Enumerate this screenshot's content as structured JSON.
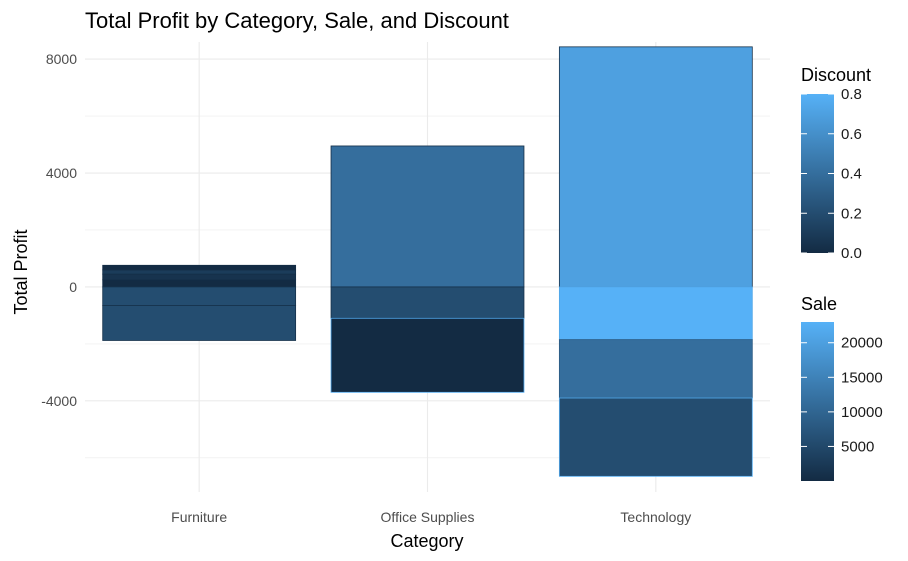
{
  "chart_data": {
    "type": "bar",
    "title": "Total Profit by Category, Sale, and Discount",
    "xlabel": "Category",
    "ylabel": "Total Profit",
    "categories": [
      "Furniture",
      "Office Supplies",
      "Technology"
    ],
    "ylim": [
      -7200,
      8600
    ],
    "yticks": [
      -4000,
      0,
      4000,
      8000
    ],
    "grid": true,
    "fill_aesthetic": "Discount",
    "outline_aesthetic": "Sale",
    "bars": [
      {
        "category": "Furniture",
        "y0": 0,
        "y1": 250,
        "discount": 0.0,
        "sale": 300
      },
      {
        "category": "Furniture",
        "y0": 250,
        "y1": 450,
        "discount": 0.05,
        "sale": 500
      },
      {
        "category": "Furniture",
        "y0": 450,
        "y1": 600,
        "discount": 0.1,
        "sale": 700
      },
      {
        "category": "Furniture",
        "y0": 600,
        "y1": 760,
        "discount": 0.0,
        "sale": 400
      },
      {
        "category": "Furniture",
        "y0": 0,
        "y1": -650,
        "discount": 0.2,
        "sale": 1200
      },
      {
        "category": "Furniture",
        "y0": -650,
        "y1": -1880,
        "discount": 0.2,
        "sale": 1000
      },
      {
        "category": "Office Supplies",
        "y0": 0,
        "y1": 4950,
        "discount": 0.4,
        "sale": 500
      },
      {
        "category": "Office Supplies",
        "y0": 0,
        "y1": -1100,
        "discount": 0.2,
        "sale": 800
      },
      {
        "category": "Office Supplies",
        "y0": -1100,
        "y1": -3700,
        "discount": 0.0,
        "sale": 22000
      },
      {
        "category": "Technology",
        "y0": 0,
        "y1": 8430,
        "discount": 0.7,
        "sale": 1000
      },
      {
        "category": "Technology",
        "y0": 0,
        "y1": -1850,
        "discount": 0.8,
        "sale": 21000
      },
      {
        "category": "Technology",
        "y0": -1850,
        "y1": -3900,
        "discount": 0.4,
        "sale": 8000
      },
      {
        "category": "Technology",
        "y0": -3900,
        "y1": -6650,
        "discount": 0.2,
        "sale": 22000
      }
    ],
    "legends": [
      {
        "title": "Discount",
        "ticks": [
          "0.8",
          "0.6",
          "0.4",
          "0.2",
          "0.0"
        ],
        "range": [
          0,
          0.8
        ]
      },
      {
        "title": "Sale",
        "ticks": [
          "20000",
          "15000",
          "10000",
          "5000"
        ],
        "range": [
          0,
          23000
        ]
      }
    ],
    "legend_placement": "right",
    "colors": {
      "low": "#132B43",
      "high": "#56B1F7",
      "grid": "#ebebeb"
    }
  }
}
